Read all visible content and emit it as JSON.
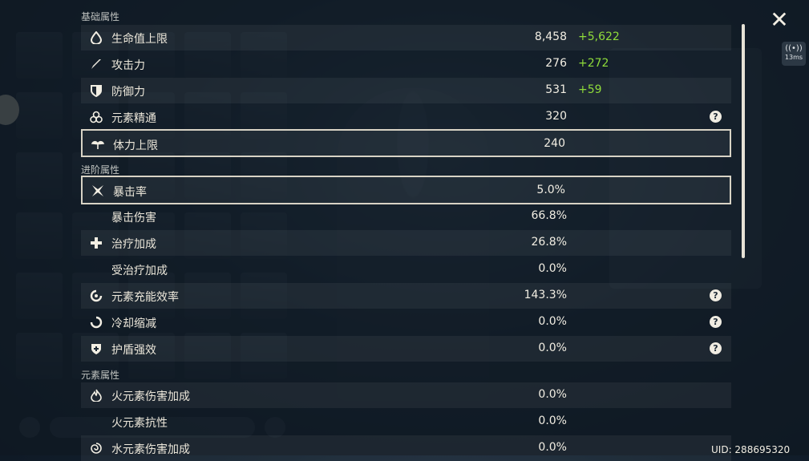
{
  "sections": {
    "base": "基础属性",
    "advanced": "进阶属性",
    "elemental": "元素属性"
  },
  "stats": [
    {
      "label": "生命值上限",
      "value": "8,458",
      "bonus": "+5,622",
      "icon": "hp-drop-icon"
    },
    {
      "label": "攻击力",
      "value": "276",
      "bonus": "+272",
      "icon": "sword-icon"
    },
    {
      "label": "防御力",
      "value": "531",
      "bonus": "+59",
      "icon": "shield-icon"
    },
    {
      "label": "元素精通",
      "value": "320",
      "bonus": "",
      "icon": "elemental-mastery-icon",
      "help": "?"
    },
    {
      "label": "体力上限",
      "value": "240",
      "bonus": "",
      "icon": "stamina-icon"
    },
    {
      "label": "暴击率",
      "value": "5.0%",
      "bonus": "",
      "icon": "crit-icon"
    },
    {
      "label": "暴击伤害",
      "value": "66.8%",
      "bonus": "",
      "icon": ""
    },
    {
      "label": "治疗加成",
      "value": "26.8%",
      "bonus": "",
      "icon": "healing-cross-icon"
    },
    {
      "label": "受治疗加成",
      "value": "0.0%",
      "bonus": "",
      "icon": ""
    },
    {
      "label": "元素充能效率",
      "value": "143.3%",
      "bonus": "",
      "icon": "energy-recharge-icon",
      "help": "?"
    },
    {
      "label": "冷却缩减",
      "value": "0.0%",
      "bonus": "",
      "icon": "cooldown-icon",
      "help": "?"
    },
    {
      "label": "护盾强效",
      "value": "0.0%",
      "bonus": "",
      "icon": "shield-strength-icon",
      "help": "?"
    },
    {
      "label": "火元素伤害加成",
      "value": "0.0%",
      "bonus": "",
      "icon": "pyro-icon"
    },
    {
      "label": "火元素抗性",
      "value": "0.0%",
      "bonus": "",
      "icon": ""
    },
    {
      "label": "水元素伤害加成",
      "value": "0.0%",
      "bonus": "",
      "icon": "hydro-icon"
    }
  ],
  "ping": {
    "wifi": "((•))",
    "label": "13ms"
  },
  "close": "✕",
  "uid": "UID: 288695320",
  "colors": {
    "bonus": "#8fdc3a",
    "text": "#ece7da"
  }
}
